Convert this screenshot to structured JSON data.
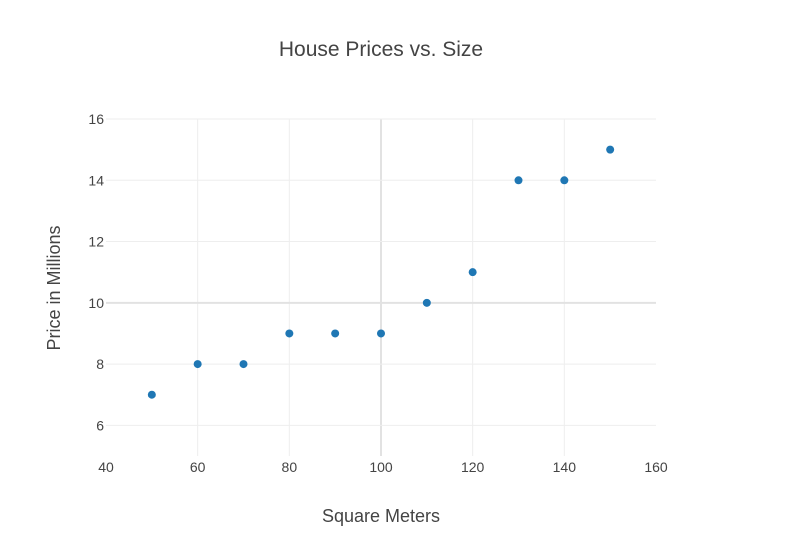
{
  "chart_data": {
    "type": "scatter",
    "title": "House Prices vs. Size",
    "xlabel": "Square Meters",
    "ylabel": "Price in Millions",
    "xlim": [
      40,
      160
    ],
    "ylim": [
      5,
      16
    ],
    "x_ticks": [
      40,
      60,
      80,
      100,
      120,
      140,
      160
    ],
    "y_ticks": [
      6,
      8,
      10,
      12,
      14,
      16
    ],
    "grid": true,
    "legend": "none",
    "series": [
      {
        "color": "#1f77b4",
        "x": [
          50,
          60,
          70,
          80,
          90,
          100,
          110,
          120,
          130,
          140,
          150
        ],
        "y": [
          7,
          8,
          8,
          9,
          9,
          9,
          10,
          11,
          14,
          14,
          15
        ]
      }
    ]
  }
}
